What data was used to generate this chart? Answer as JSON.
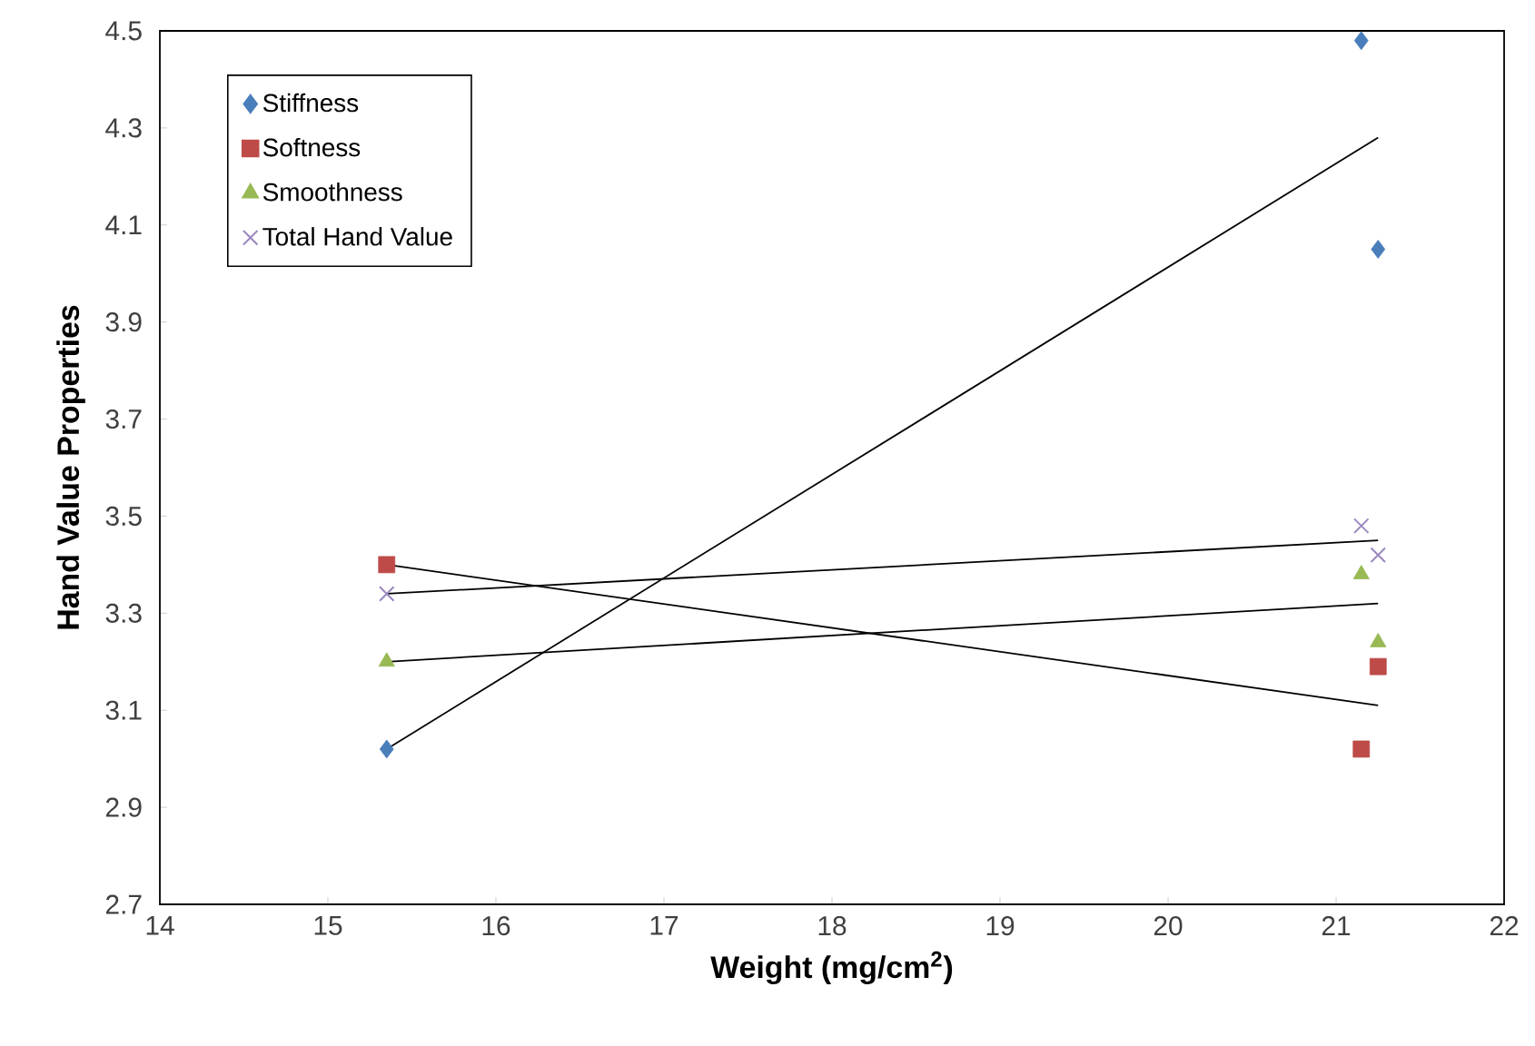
{
  "chart_data": {
    "type": "scatter",
    "xlabel": "Weight (mg/cm$^{2}$)",
    "ylabel": "Hand Value Properties",
    "xlim": [
      14,
      22
    ],
    "xticks": [
      14,
      15,
      16,
      17,
      18,
      19,
      20,
      21,
      22
    ],
    "ylim": [
      2.7,
      4.5
    ],
    "yticks": [
      2.7,
      2.9,
      3.1,
      3.3,
      3.5,
      3.7,
      3.9,
      4.1,
      4.3,
      4.5
    ],
    "grid": false,
    "legend": "top left",
    "series": [
      {
        "name": "Stiffness",
        "color": "#4a7ebb",
        "marker": "diamond",
        "x": [
          15.35,
          21.15,
          21.25
        ],
        "values": [
          3.02,
          4.48,
          4.05
        ]
      },
      {
        "name": "Softness",
        "color": "#be4b48",
        "marker": "square",
        "x": [
          15.35,
          21.15,
          21.25
        ],
        "values": [
          3.4,
          3.02,
          3.19
        ]
      },
      {
        "name": "Smoothness",
        "color": "#98b954",
        "marker": "triangle",
        "x": [
          15.35,
          21.15,
          21.25
        ],
        "values": [
          3.2,
          3.38,
          3.24
        ]
      },
      {
        "name": "Total Hand Value",
        "color": "#9a87c0",
        "marker": "cross",
        "x": [
          15.35,
          21.15,
          21.25
        ],
        "values": [
          3.34,
          3.48,
          3.42
        ]
      },
      {
        "type": "line",
        "color": "#000000",
        "marker": "none",
        "x": [
          15.35,
          21.25
        ],
        "values": [
          3.02,
          4.28
        ]
      },
      {
        "type": "line",
        "color": "#000000",
        "marker": "none",
        "x": [
          15.35,
          21.25
        ],
        "values": [
          3.4,
          3.11
        ]
      },
      {
        "type": "line",
        "color": "#000000",
        "marker": "none",
        "x": [
          15.35,
          21.25
        ],
        "values": [
          3.2,
          3.32
        ]
      },
      {
        "type": "line",
        "color": "#000000",
        "marker": "none",
        "x": [
          15.35,
          21.25
        ],
        "values": [
          3.34,
          3.45
        ]
      }
    ]
  }
}
